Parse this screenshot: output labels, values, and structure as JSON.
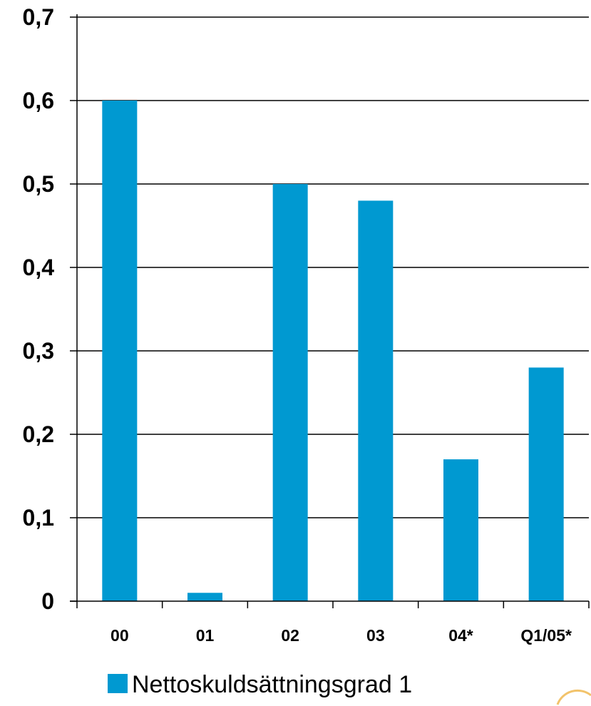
{
  "chart_data": {
    "type": "bar",
    "categories": [
      "00",
      "01",
      "02",
      "03",
      "04*",
      "Q1/05*"
    ],
    "series": [
      {
        "name": "Nettoskuldsättningsgrad 1",
        "values": [
          0.6,
          0.01,
          0.5,
          0.48,
          0.17,
          0.28
        ]
      }
    ],
    "ylim": [
      0,
      0.7
    ],
    "yticks": [
      0,
      0.1,
      0.2,
      0.3,
      0.4,
      0.5,
      0.6,
      0.7
    ],
    "ytick_labels": [
      "0",
      "0,1",
      "0,2",
      "0,3",
      "0,4",
      "0,5",
      "0,6",
      "0,7"
    ],
    "grid": true,
    "legend_position": "bottom",
    "colors": {
      "bar": "#0099D1",
      "axis": "#000000",
      "grid": "#000000"
    }
  }
}
